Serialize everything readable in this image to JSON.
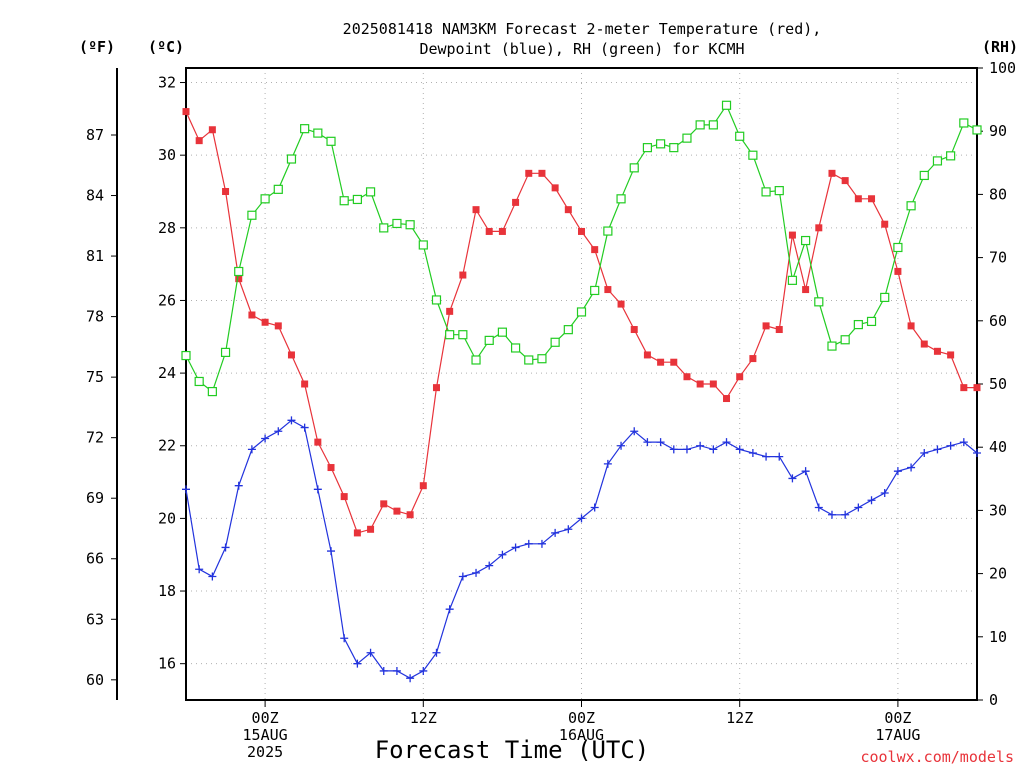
{
  "chart_data": {
    "type": "line",
    "title_line1": "2025081418 NAM3KM Forecast 2-meter Temperature (red),",
    "title_line2": "Dewpoint (blue), RH (green) for KCMH",
    "xlabel": "Forecast Time (UTC)",
    "credit": "coolwx.com/models",
    "units": {
      "fahrenheit": "(ºF)",
      "celsius": "(ºC)",
      "rh": "(RH)"
    },
    "celsius_axis": {
      "ylim": [
        15.0,
        32.4
      ],
      "ticks": [
        16,
        18,
        20,
        22,
        24,
        26,
        28,
        30,
        32
      ]
    },
    "fahrenheit_axis": {
      "ticks": [
        60,
        63,
        66,
        69,
        72,
        75,
        78,
        81,
        84,
        87
      ]
    },
    "rh_axis": {
      "ylim": [
        0,
        100
      ],
      "ticks": [
        0,
        10,
        20,
        30,
        40,
        50,
        60,
        70,
        80,
        90,
        100
      ]
    },
    "x_start": "2025-08-14 18Z",
    "x_step_hours": 1,
    "x_range_hours": [
      0,
      60
    ],
    "x_tick_labels": [
      {
        "hour": 6,
        "line1": "00Z",
        "line2": "15AUG",
        "line3": "2025"
      },
      {
        "hour": 18,
        "line1": "12Z",
        "line2": "",
        "line3": ""
      },
      {
        "hour": 30,
        "line1": "00Z",
        "line2": "16AUG",
        "line3": ""
      },
      {
        "hour": 42,
        "line1": "12Z",
        "line2": "",
        "line3": ""
      },
      {
        "hour": 54,
        "line1": "00Z",
        "line2": "17AUG",
        "line3": ""
      }
    ],
    "grid": true,
    "series": [
      {
        "name": "Temperature",
        "color": "#e8333a",
        "marker": "filled-square",
        "axis": "celsius",
        "values": [
          31.2,
          30.4,
          30.7,
          29.0,
          26.6,
          25.6,
          25.4,
          25.3,
          24.5,
          23.7,
          22.1,
          21.4,
          20.6,
          19.6,
          19.7,
          20.4,
          20.2,
          20.1,
          20.9,
          23.6,
          25.7,
          26.7,
          28.5,
          27.9,
          27.9,
          28.7,
          29.5,
          29.5,
          29.1,
          28.5,
          27.9,
          27.4,
          26.3,
          25.9,
          25.2,
          24.5,
          24.3,
          24.3,
          23.9,
          23.7,
          23.7,
          23.3,
          23.9,
          24.4,
          25.3,
          25.2,
          27.8,
          26.3,
          28.0,
          29.5,
          29.3,
          28.8,
          28.8,
          28.1,
          26.8,
          25.3,
          24.8,
          24.6,
          24.5,
          23.6,
          23.6
        ]
      },
      {
        "name": "Dewpoint",
        "color": "#2233dd",
        "marker": "plus",
        "axis": "celsius",
        "values": [
          20.8,
          18.6,
          18.4,
          19.2,
          20.9,
          21.9,
          22.2,
          22.4,
          22.7,
          22.5,
          20.8,
          19.1,
          16.7,
          16.0,
          16.3,
          15.8,
          15.8,
          15.6,
          15.8,
          16.3,
          17.5,
          18.4,
          18.5,
          18.7,
          19.0,
          19.2,
          19.3,
          19.3,
          19.6,
          19.7,
          20.0,
          20.3,
          21.5,
          22.0,
          22.4,
          22.1,
          22.1,
          21.9,
          21.9,
          22.0,
          21.9,
          22.1,
          21.9,
          21.8,
          21.7,
          21.7,
          21.1,
          21.3,
          20.3,
          20.1,
          20.1,
          20.3,
          20.5,
          20.7,
          21.3,
          21.4,
          21.8,
          21.9,
          22.0,
          22.1,
          21.8
        ]
      },
      {
        "name": "RH",
        "color": "#22cc22",
        "marker": "open-square",
        "axis": "rh",
        "values": [
          54.5,
          50.4,
          48.8,
          55.0,
          67.8,
          76.7,
          79.3,
          80.8,
          85.6,
          90.4,
          89.7,
          88.4,
          79.0,
          79.2,
          80.4,
          74.7,
          75.4,
          75.2,
          72.0,
          63.3,
          57.8,
          57.8,
          53.8,
          56.9,
          58.2,
          55.7,
          53.8,
          54.0,
          56.6,
          58.6,
          61.4,
          64.8,
          74.2,
          79.3,
          84.2,
          87.4,
          88.0,
          87.4,
          88.9,
          91.0,
          91.0,
          94.1,
          89.2,
          86.2,
          80.4,
          80.6,
          66.4,
          72.7,
          63.0,
          56.0,
          57.0,
          59.4,
          59.9,
          63.7,
          71.6,
          78.2,
          83.0,
          85.3,
          86.1,
          91.3,
          90.2
        ]
      }
    ]
  }
}
